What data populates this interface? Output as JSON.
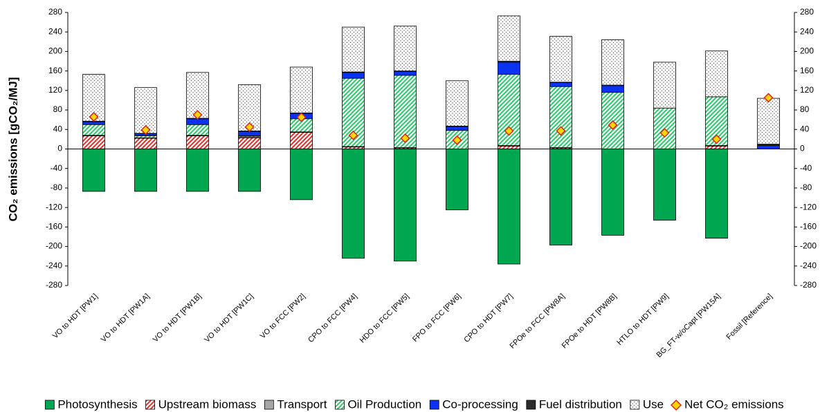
{
  "chart_data": {
    "type": "bar",
    "stacked": true,
    "y_label": "CO₂ emissions [gCO₂/MJ]",
    "categories": [
      "VO to HDT [PW1]",
      "VO to HDT [PW1A]",
      "VO to HDT [PW1B]",
      "VO to HDT [PW1C]",
      "VO to FCC [PW2]",
      "CPO to FCC [PW4]",
      "HDO to FCC [PW5]",
      "FPO to FCC [PW6]",
      "CPO to HDT [PW7]",
      "FPOe to FCC [PW8A]",
      "FPOe to HDT [PW8B]",
      "HTLO to HDT [PW9]",
      "BG_FT-w/oCapt [PW15A]",
      "Fossil [Reference]"
    ],
    "series": [
      {
        "name": "Photosynthesis",
        "color": "#00a650",
        "pattern": "solid",
        "values": [
          -87,
          -87,
          -87,
          -87,
          -104,
          -224,
          -230,
          -125,
          -236,
          -197,
          -177,
          -146,
          -183,
          0
        ]
      },
      {
        "name": "Upstream biomass",
        "color": "#d9302c",
        "pattern": "hatch",
        "values": [
          27,
          22,
          27,
          23,
          34,
          4,
          2,
          0,
          6,
          2,
          0,
          0,
          6,
          0
        ]
      },
      {
        "name": "Transport",
        "color": "#a6a6a6",
        "pattern": "solid",
        "values": [
          1,
          1,
          1,
          2,
          1,
          1,
          1,
          0,
          1,
          1,
          0,
          0,
          1,
          0
        ]
      },
      {
        "name": "Oil Production",
        "color": "#33c46a",
        "pattern": "hatch",
        "values": [
          22,
          4,
          22,
          2,
          27,
          140,
          148,
          38,
          146,
          125,
          116,
          84,
          100,
          0
        ]
      },
      {
        "name": "Co-processing",
        "color": "#0a32f0",
        "pattern": "solid",
        "values": [
          6,
          4,
          12,
          9,
          11,
          12,
          8,
          8,
          25,
          8,
          14,
          0,
          0,
          7
        ]
      },
      {
        "name": "Fuel distribution",
        "color": "#2b2b2b",
        "pattern": "solid",
        "values": [
          1,
          1,
          1,
          1,
          1,
          1,
          1,
          1,
          2,
          1,
          1,
          0,
          0,
          3
        ]
      },
      {
        "name": "Use",
        "color": "#555555",
        "pattern": "dots",
        "values": [
          96,
          94,
          94,
          95,
          94,
          92,
          92,
          93,
          93,
          94,
          93,
          94,
          94,
          94
        ]
      }
    ],
    "net": {
      "name": "Net CO₂ emissions",
      "color": "#ffd700",
      "edge": "#e02020",
      "values": [
        66,
        39,
        70,
        45,
        65,
        28,
        22,
        18,
        37,
        37,
        49,
        33,
        20,
        105
      ]
    },
    "ylim": [
      -280,
      280
    ],
    "yticks": [
      -280,
      -240,
      -200,
      -160,
      -120,
      -80,
      -40,
      0,
      40,
      80,
      120,
      160,
      200,
      240,
      280
    ],
    "y2lim": [
      -280,
      280
    ],
    "y2ticks": [
      -280,
      -240,
      -200,
      -160,
      -120,
      -80,
      -40,
      0,
      40,
      80,
      120,
      160,
      200,
      240,
      280
    ]
  }
}
